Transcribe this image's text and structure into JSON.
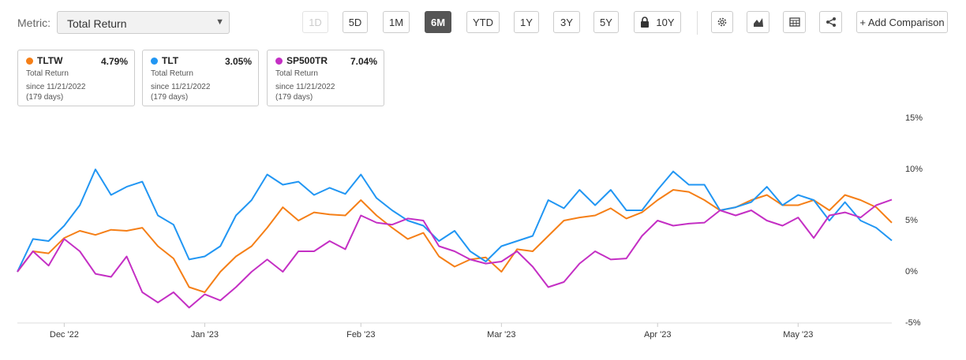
{
  "toolbar": {
    "metric_label": "Metric:",
    "metric_value": "Total Return",
    "ranges": [
      "1D",
      "5D",
      "1M",
      "6M",
      "YTD",
      "1Y",
      "3Y",
      "5Y",
      "10Y"
    ],
    "active_range": "6M",
    "add_comparison": "+ Add Comparison"
  },
  "cards": [
    {
      "return": "4.79%",
      "metric": "Total Return",
      "since": "since 11/21/2022",
      "days": "(179 days)"
    },
    {
      "return": "3.05%",
      "metric": "Total Return",
      "since": "since 11/21/2022",
      "days": "(179 days)"
    },
    {
      "return": "7.04%",
      "metric": "Total Return",
      "since": "since 11/21/2022",
      "days": "(179 days)"
    }
  ],
  "chart_data": {
    "type": "line",
    "categories": [
      null,
      null,
      null,
      "Dec '22",
      null,
      null,
      null,
      null,
      null,
      null,
      null,
      null,
      "Jan '23",
      null,
      null,
      null,
      null,
      null,
      null,
      null,
      null,
      null,
      "Feb '23",
      null,
      null,
      null,
      null,
      null,
      null,
      null,
      null,
      "Mar '23",
      null,
      null,
      null,
      null,
      null,
      null,
      null,
      null,
      null,
      "Apr '23",
      null,
      null,
      null,
      null,
      null,
      null,
      null,
      null,
      "May '23",
      null,
      null,
      null,
      null,
      null,
      null
    ],
    "series": [
      {
        "name": "TLTW",
        "color": "#f57f17",
        "values": [
          0,
          2,
          1.8,
          3.3,
          4,
          3.6,
          4.1,
          4,
          4.3,
          2.5,
          1.3,
          -1.5,
          -2,
          0,
          1.5,
          2.5,
          4.3,
          6.3,
          5,
          5.8,
          5.6,
          5.5,
          7,
          5.5,
          4.3,
          3.2,
          3.8,
          1.5,
          0.5,
          1.2,
          1.4,
          0,
          2.2,
          2,
          3.5,
          5,
          5.3,
          5.5,
          6.2,
          5.2,
          5.8,
          7,
          8,
          7.8,
          7,
          6,
          6.3,
          7,
          7.5,
          6.5,
          6.5,
          7,
          6,
          7.5,
          7,
          6.3,
          4.79
        ]
      },
      {
        "name": "TLT",
        "color": "#2196f3",
        "values": [
          0,
          3.2,
          3,
          4.5,
          6.5,
          10,
          7.5,
          8.3,
          8.8,
          5.5,
          4.6,
          1.2,
          1.5,
          2.5,
          5.5,
          7,
          9.5,
          8.5,
          8.8,
          7.5,
          8.2,
          7.6,
          9.5,
          7.2,
          6,
          5,
          4.5,
          3,
          4,
          2,
          1,
          2.5,
          3,
          3.5,
          7,
          6.2,
          8,
          6.5,
          8,
          6,
          6,
          8,
          9.8,
          8.5,
          8.5,
          6,
          6.3,
          6.8,
          8.3,
          6.5,
          7.5,
          7,
          5,
          6.8,
          5,
          4.3,
          3.05
        ]
      },
      {
        "name": "SP500TR",
        "color": "#c42fc4",
        "values": [
          0,
          2,
          0.6,
          3.2,
          2,
          -0.2,
          -0.5,
          1.5,
          -2,
          -3,
          -2,
          -3.5,
          -2.2,
          -2.8,
          -1.5,
          0,
          1.2,
          0,
          2,
          2,
          3,
          2.2,
          5.5,
          4.8,
          4.6,
          5.2,
          5,
          2.5,
          2,
          1.2,
          0.8,
          1,
          2,
          0.5,
          -1.5,
          -1,
          0.8,
          2,
          1.2,
          1.3,
          3.5,
          5,
          4.5,
          4.7,
          4.8,
          6,
          5.5,
          6,
          5,
          4.5,
          5.3,
          3.3,
          5.5,
          5.8,
          5.3,
          6.5,
          7.04
        ]
      }
    ],
    "ylim": [
      -5,
      15
    ],
    "yticks": [
      {
        "value": 15,
        "label": "15%"
      },
      {
        "value": 10,
        "label": "10%"
      },
      {
        "value": 5,
        "label": "5%"
      },
      {
        "value": 0,
        "label": "0%"
      },
      {
        "value": -5,
        "label": "-5%"
      }
    ],
    "grid": false
  }
}
